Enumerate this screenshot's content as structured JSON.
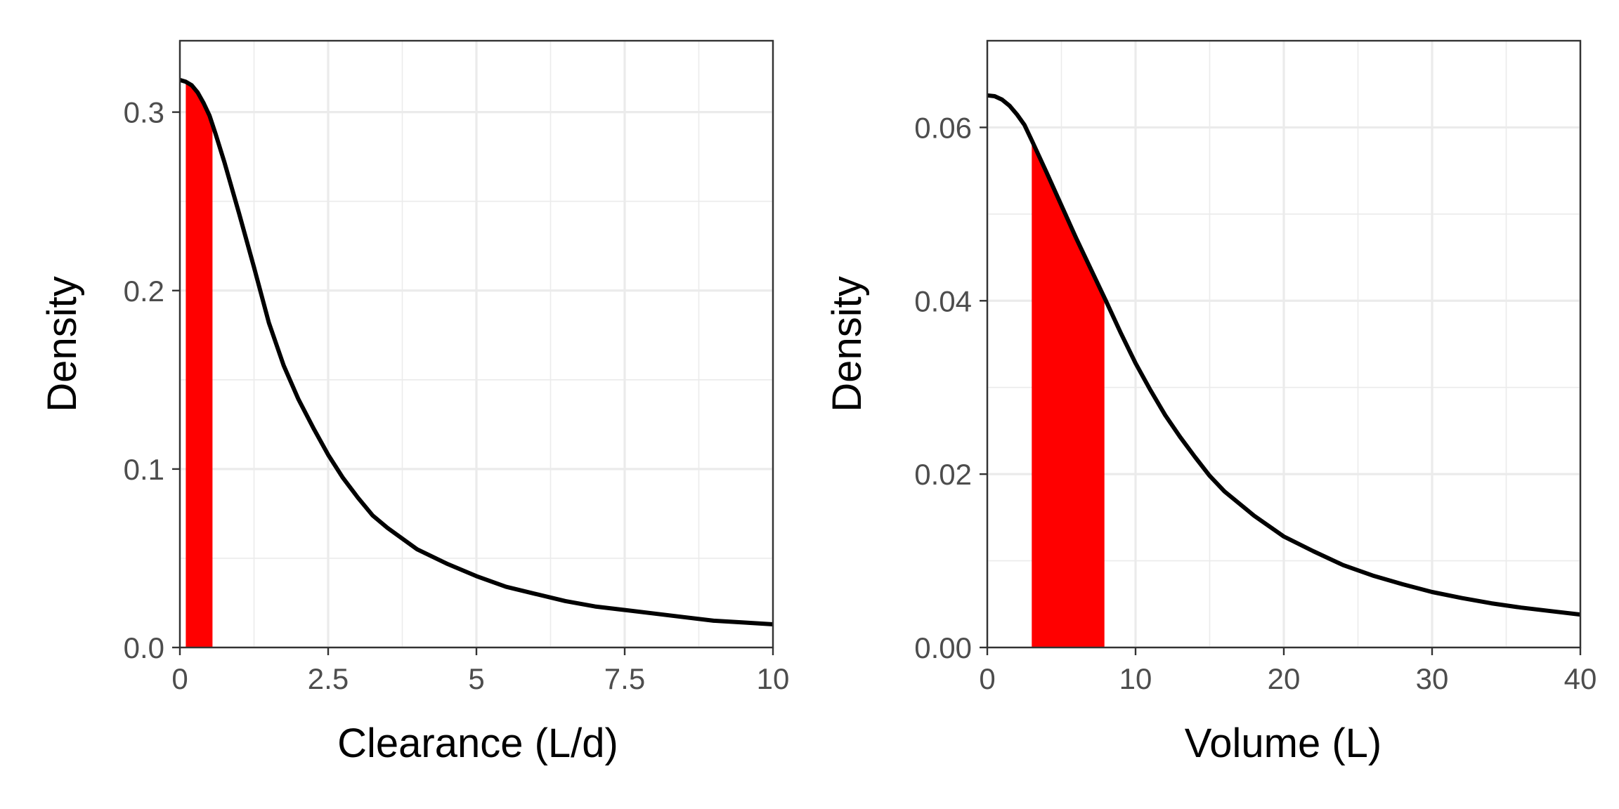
{
  "chart_data": [
    {
      "type": "line",
      "xlabel": "Clearance (L/d)",
      "ylabel": "Density",
      "xlim": [
        0,
        10
      ],
      "ylim": [
        0,
        0.34
      ],
      "x_ticks": [
        0,
        2.5,
        5,
        7.5,
        10
      ],
      "x_tick_labels": [
        "0",
        "2.5",
        "5",
        "7.5",
        "10"
      ],
      "y_ticks": [
        0,
        0.1,
        0.2,
        0.3
      ],
      "y_tick_labels": [
        "0.0",
        "0.1",
        "0.2",
        "0.3"
      ],
      "grid": true,
      "legend": "none",
      "series": [
        {
          "x": [
            0,
            0.1,
            0.2,
            0.3,
            0.4,
            0.5,
            0.6,
            0.75,
            1.0,
            1.25,
            1.5,
            1.75,
            2.0,
            2.25,
            2.5,
            2.75,
            3.0,
            3.25,
            3.5,
            4.0,
            4.5,
            5.0,
            5.5,
            6.0,
            6.5,
            7.0,
            7.5,
            8.0,
            8.5,
            9.0,
            9.5,
            10.0
          ],
          "values": [
            0.318,
            0.317,
            0.315,
            0.311,
            0.305,
            0.298,
            0.288,
            0.272,
            0.243,
            0.213,
            0.182,
            0.158,
            0.139,
            0.123,
            0.108,
            0.095,
            0.084,
            0.074,
            0.067,
            0.055,
            0.047,
            0.04,
            0.034,
            0.03,
            0.026,
            0.023,
            0.021,
            0.019,
            0.017,
            0.015,
            0.014,
            0.013
          ],
          "color": "#000000"
        }
      ],
      "shaded_region": {
        "x_from": 0.1,
        "x_to": 0.55,
        "color": "#ff0000"
      }
    },
    {
      "type": "line",
      "xlabel": "Volume (L)",
      "ylabel": "Density",
      "xlim": [
        0,
        40
      ],
      "ylim": [
        0,
        0.07
      ],
      "x_ticks": [
        0,
        10,
        20,
        30,
        40
      ],
      "x_tick_labels": [
        "0",
        "10",
        "20",
        "30",
        "40"
      ],
      "y_ticks": [
        0,
        0.02,
        0.04,
        0.06
      ],
      "y_tick_labels": [
        "0.00",
        "0.02",
        "0.04",
        "0.06"
      ],
      "grid": true,
      "legend": "none",
      "series": [
        {
          "x": [
            0,
            0.5,
            1,
            1.5,
            2,
            2.5,
            3,
            4,
            5,
            6,
            7,
            8,
            9,
            10,
            11,
            12,
            13,
            14,
            15,
            16,
            18,
            20,
            22,
            24,
            26,
            28,
            30,
            32,
            34,
            36,
            38,
            40
          ],
          "values": [
            0.0637,
            0.0636,
            0.0632,
            0.0625,
            0.0615,
            0.0603,
            0.0585,
            0.0548,
            0.051,
            0.0472,
            0.0436,
            0.04,
            0.0363,
            0.0328,
            0.0297,
            0.0268,
            0.0243,
            0.022,
            0.0198,
            0.018,
            0.0152,
            0.0128,
            0.0111,
            0.0095,
            0.0083,
            0.0073,
            0.0064,
            0.0057,
            0.0051,
            0.0046,
            0.0042,
            0.0038
          ],
          "color": "#000000"
        }
      ],
      "shaded_region": {
        "x_from": 3,
        "x_to": 7.9,
        "color": "#ff0000"
      }
    }
  ]
}
